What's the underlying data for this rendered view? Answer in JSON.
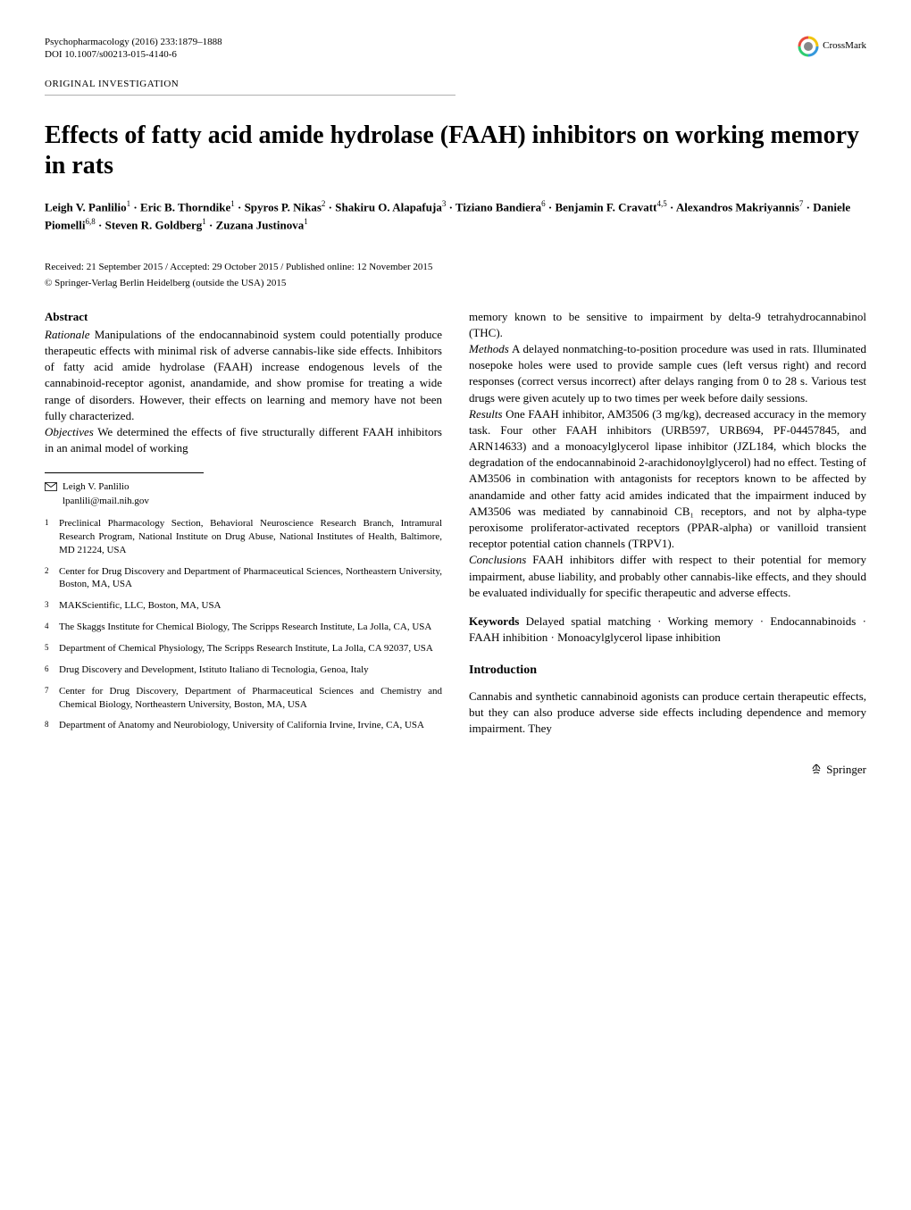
{
  "header": {
    "journal_line": "Psychopharmacology (2016) 233:1879–1888",
    "doi_line": "DOI 10.1007/s00213-015-4140-6",
    "crossmark_label": "CrossMark"
  },
  "section_label": "ORIGINAL INVESTIGATION",
  "title": "Effects of fatty acid amide hydrolase (FAAH) inhibitors on working memory in rats",
  "authors_html": "Leigh V. Panlilio|1| · Eric B. Thorndike|1| · Spyros P. Nikas|2| · Shakiru O. Alapafuja|3| · Tiziano Bandiera|6| · Benjamin F. Cravatt|4,5| · Alexandros Makriyannis|7| · Daniele Piomelli|6,8| · Steven R. Goldberg|1| · Zuzana Justinova|1|",
  "dates": "Received: 21 September 2015 / Accepted: 29 October 2015 / Published online: 12 November 2015",
  "copyright": "© Springer-Verlag Berlin Heidelberg (outside the USA) 2015",
  "abstract": {
    "heading": "Abstract",
    "rationale_label": "Rationale",
    "rationale_text": " Manipulations of the endocannabinoid system could potentially produce therapeutic effects with minimal risk of adverse cannabis-like side effects. Inhibitors of fatty acid amide hydrolase (FAAH) increase endogenous levels of the cannabinoid-receptor agonist, anandamide, and show promise for treating a wide range of disorders. However, their effects on learning and memory have not been fully characterized.",
    "objectives_label": "Objectives",
    "objectives_text": " We determined the effects of five structurally different FAAH inhibitors in an animal model of working",
    "objectives_cont": "memory known to be sensitive to impairment by delta-9 tetrahydrocannabinol (THC).",
    "methods_label": "Methods",
    "methods_text": " A delayed nonmatching-to-position procedure was used in rats. Illuminated nosepoke holes were used to provide sample cues (left versus right) and record responses (correct versus incorrect) after delays ranging from 0 to 28 s. Various test drugs were given acutely up to two times per week before daily sessions.",
    "results_label": "Results",
    "results_text": " One FAAH inhibitor, AM3506 (3 mg/kg), decreased accuracy in the memory task. Four other FAAH inhibitors (URB597, URB694, PF-04457845, and ARN14633) and a monoacylglycerol lipase inhibitor (JZL184, which blocks the degradation of the endocannabinoid 2-arachidonoylglycerol) had no effect. Testing of AM3506 in combination with antagonists for receptors known to be affected by anandamide and other fatty acid amides indicated that the impairment induced by AM3506 was mediated by cannabinoid CB₁ receptors, and not by alpha-type peroxisome proliferator-activated receptors (PPAR-alpha) or vanilloid transient receptor potential cation channels (TRPV1).",
    "conclusions_label": "Conclusions",
    "conclusions_text": " FAAH inhibitors differ with respect to their potential for memory impairment, abuse liability, and probably other cannabis-like effects, and they should be evaluated individually for specific therapeutic and adverse effects."
  },
  "keywords": {
    "label": "Keywords",
    "text": " Delayed spatial matching · Working memory · Endocannabinoids · FAAH inhibition · Monoacylglycerol lipase inhibition"
  },
  "introduction": {
    "heading": "Introduction",
    "text": "Cannabis and synthetic cannabinoid agonists can produce certain therapeutic effects, but they can also produce adverse side effects including dependence and memory impairment. They"
  },
  "corresponding": {
    "name": "Leigh V. Panlilio",
    "email": "lpanlili@mail.nih.gov"
  },
  "affiliations": [
    {
      "num": "1",
      "text": "Preclinical Pharmacology Section, Behavioral Neuroscience Research Branch, Intramural Research Program, National Institute on Drug Abuse, National Institutes of Health, Baltimore, MD 21224, USA"
    },
    {
      "num": "2",
      "text": "Center for Drug Discovery and Department of Pharmaceutical Sciences, Northeastern University, Boston, MA, USA"
    },
    {
      "num": "3",
      "text": "MAKScientific, LLC, Boston, MA, USA"
    },
    {
      "num": "4",
      "text": "The Skaggs Institute for Chemical Biology, The Scripps Research Institute, La Jolla, CA, USA"
    },
    {
      "num": "5",
      "text": "Department of Chemical Physiology, The Scripps Research Institute, La Jolla, CA 92037, USA"
    },
    {
      "num": "6",
      "text": "Drug Discovery and Development, Istituto Italiano di Tecnologia, Genoa, Italy"
    },
    {
      "num": "7",
      "text": "Center for Drug Discovery, Department of Pharmaceutical Sciences and Chemistry and Chemical Biology, Northeastern University, Boston, MA, USA"
    },
    {
      "num": "8",
      "text": "Department of Anatomy and Neurobiology, University of California Irvine, Irvine, CA, USA"
    }
  ],
  "footer": {
    "publisher": "Springer"
  },
  "colors": {
    "text": "#000000",
    "background": "#ffffff",
    "rule": "#b0b0b0",
    "crossmark_ring_colors": [
      "#e84c3d",
      "#f1c40f",
      "#3498db",
      "#2ecc71"
    ]
  },
  "typography": {
    "title_fontsize": 28,
    "body_fontsize": 13,
    "small_fontsize": 11,
    "font_family": "Georgia, Times New Roman, serif"
  }
}
